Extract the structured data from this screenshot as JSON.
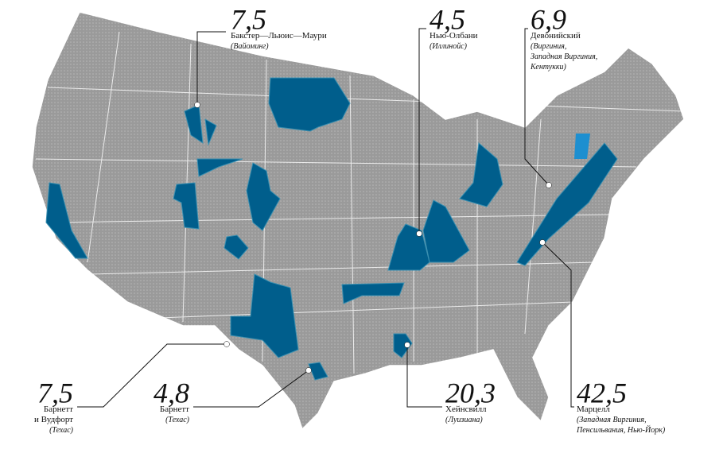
{
  "annotations": [
    {
      "value": "7,5",
      "name_lines": [
        "Бакстер—Льюис—Маури"
      ],
      "region_lines": [
        "(Вайоминг)"
      ]
    },
    {
      "value": "4,5",
      "name_lines": [
        "Нью-Олбани"
      ],
      "region_lines": [
        "(Иллинойс)"
      ]
    },
    {
      "value": "6,9",
      "name_lines": [
        "Девонийский"
      ],
      "region_lines": [
        "(Виргиния,",
        "Западная Виргиния,",
        "Кентукки)"
      ]
    },
    {
      "value": "7,5",
      "name_lines": [
        "Барнетт",
        "и Вудфорт"
      ],
      "region_lines": [
        "(Техас)"
      ]
    },
    {
      "value": "4,8",
      "name_lines": [
        "Барнетт"
      ],
      "region_lines": [
        "(Техас)"
      ]
    },
    {
      "value": "20,3",
      "name_lines": [
        "Хейнсвилл"
      ],
      "region_lines": [
        "(Луизиана)"
      ]
    },
    {
      "value": "42,5",
      "name_lines": [
        "Марцелл"
      ],
      "region_lines": [
        "(Западная Виргиния,",
        "Пенсильвания, Нью-Йорк)"
      ]
    }
  ]
}
